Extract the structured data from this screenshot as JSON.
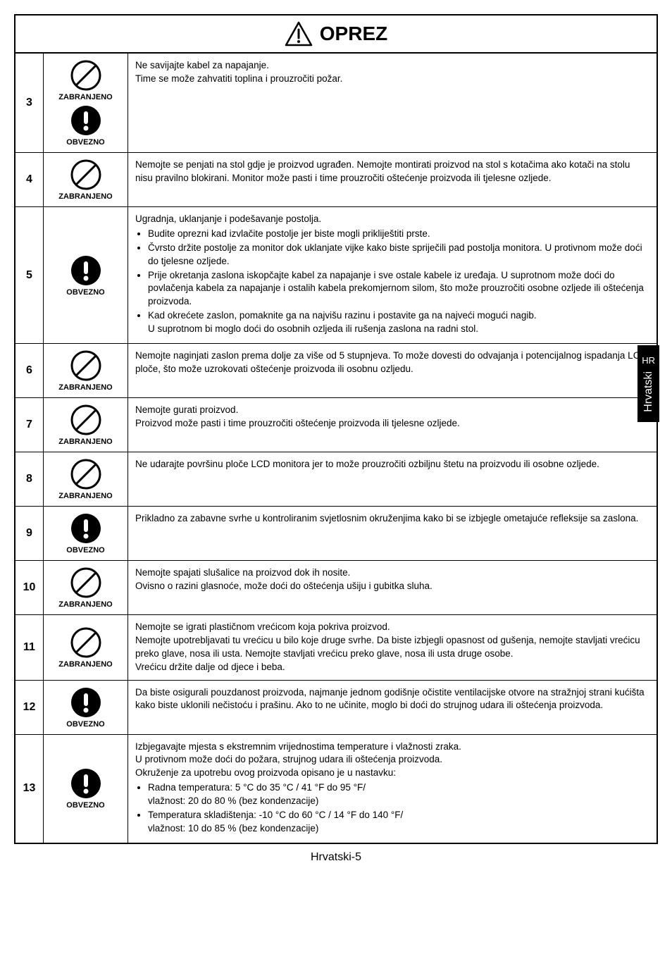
{
  "header": {
    "title": "OPREZ"
  },
  "labels": {
    "zabranjeno": "ZABRANJENO",
    "obvezno": "OBVEZNO"
  },
  "sideTab": {
    "code": "HR",
    "lang": "Hrvatski"
  },
  "footer": "Hrvatski-5",
  "rows": [
    {
      "num": "3",
      "icons": [
        "prohibit",
        "mandatory"
      ],
      "text": "Ne savijajte kabel za napajanje.\nTime se može zahvatiti toplina i prouzročiti požar."
    },
    {
      "num": "4",
      "icons": [
        "prohibit"
      ],
      "text": "Nemojte se penjati na stol gdje je proizvod ugrađen. Nemojte montirati proizvod na stol s kotačima ako kotači na stolu nisu pravilno blokirani. Monitor može pasti i time prouzročiti oštećenje proizvoda ili tjelesne ozljede."
    },
    {
      "num": "5",
      "icons": [
        "mandatory"
      ],
      "lead": "Ugradnja, uklanjanje i podešavanje postolja.",
      "bullets": [
        "Budite oprezni kad izvlačite postolje jer biste mogli prikliještiti prste.",
        "Čvrsto držite postolje za monitor dok uklanjate vijke kako biste spriječili pad postolja monitora. U protivnom može doći do tjelesne ozljede.",
        "Prije okretanja zaslona iskopčajte kabel za napajanje i sve ostale kabele iz uređaja. U suprotnom može doći do povlačenja kabela za napajanje i ostalih kabela prekomjernom silom, što može prouzročiti osobne ozljede ili oštećenja proizvoda.",
        "Kad okrećete zaslon, pomaknite ga na najvišu razinu i postavite ga na najveći mogući nagib.\nU suprotnom bi moglo doći do osobnih ozljeda ili rušenja zaslona na radni stol."
      ]
    },
    {
      "num": "6",
      "icons": [
        "prohibit"
      ],
      "text": "Nemojte naginjati zaslon prema dolje za više od 5 stupnjeva. To može dovesti do odvajanja i potencijalnog ispadanja LCD ploče, što može uzrokovati oštećenje proizvoda ili osobnu ozljedu."
    },
    {
      "num": "7",
      "icons": [
        "prohibit"
      ],
      "text": "Nemojte gurati proizvod.\nProizvod može pasti i time prouzročiti oštećenje proizvoda ili tjelesne ozljede."
    },
    {
      "num": "8",
      "icons": [
        "prohibit"
      ],
      "text": "Ne udarajte površinu ploče LCD monitora jer to može prouzročiti ozbiljnu štetu na proizvodu ili osobne ozljede."
    },
    {
      "num": "9",
      "icons": [
        "mandatory"
      ],
      "text": "Prikladno za zabavne svrhe u kontroliranim svjetlosnim okruženjima kako bi se izbjegle ometajuće refleksije sa zaslona."
    },
    {
      "num": "10",
      "icons": [
        "prohibit"
      ],
      "text": "Nemojte spajati slušalice na proizvod dok ih nosite.\nOvisno o razini glasnoće, može doći do oštećenja ušiju i gubitka sluha."
    },
    {
      "num": "11",
      "icons": [
        "prohibit"
      ],
      "text": "Nemojte se igrati plastičnom vrećicom koja pokriva proizvod.\nNemojte upotrebljavati tu vrećicu u bilo koje druge svrhe. Da biste izbjegli opasnost od gušenja, nemojte stavljati vrećicu preko glave, nosa ili usta. Nemojte stavljati vrećicu preko glave, nosa ili usta druge osobe.\nVrećicu držite dalje od djece i beba."
    },
    {
      "num": "12",
      "icons": [
        "mandatory"
      ],
      "text": "Da biste osigurali pouzdanost proizvoda, najmanje jednom godišnje očistite ventilacijske otvore na stražnjoj strani kućišta kako biste uklonili nečistoću i prašinu. Ako to ne učinite, moglo bi doći do strujnog udara ili oštećenja proizvoda."
    },
    {
      "num": "13",
      "icons": [
        "mandatory"
      ],
      "lead": "Izbjegavajte mjesta s ekstremnim vrijednostima temperature i vlažnosti zraka.\nU protivnom može doći do požara, strujnog udara ili oštećenja proizvoda.\nOkruženje za upotrebu ovog proizvoda opisano je u nastavku:",
      "bullets": [
        "Radna temperatura: 5 °C do 35 °C / 41 °F do 95 °F/\nvlažnost: 20 do 80 % (bez kondenzacije)",
        "Temperatura skladištenja: -10 °C do 60 °C / 14 °F do 140 °F/\nvlažnost: 10 do 85 % (bez kondenzacije)"
      ]
    }
  ]
}
